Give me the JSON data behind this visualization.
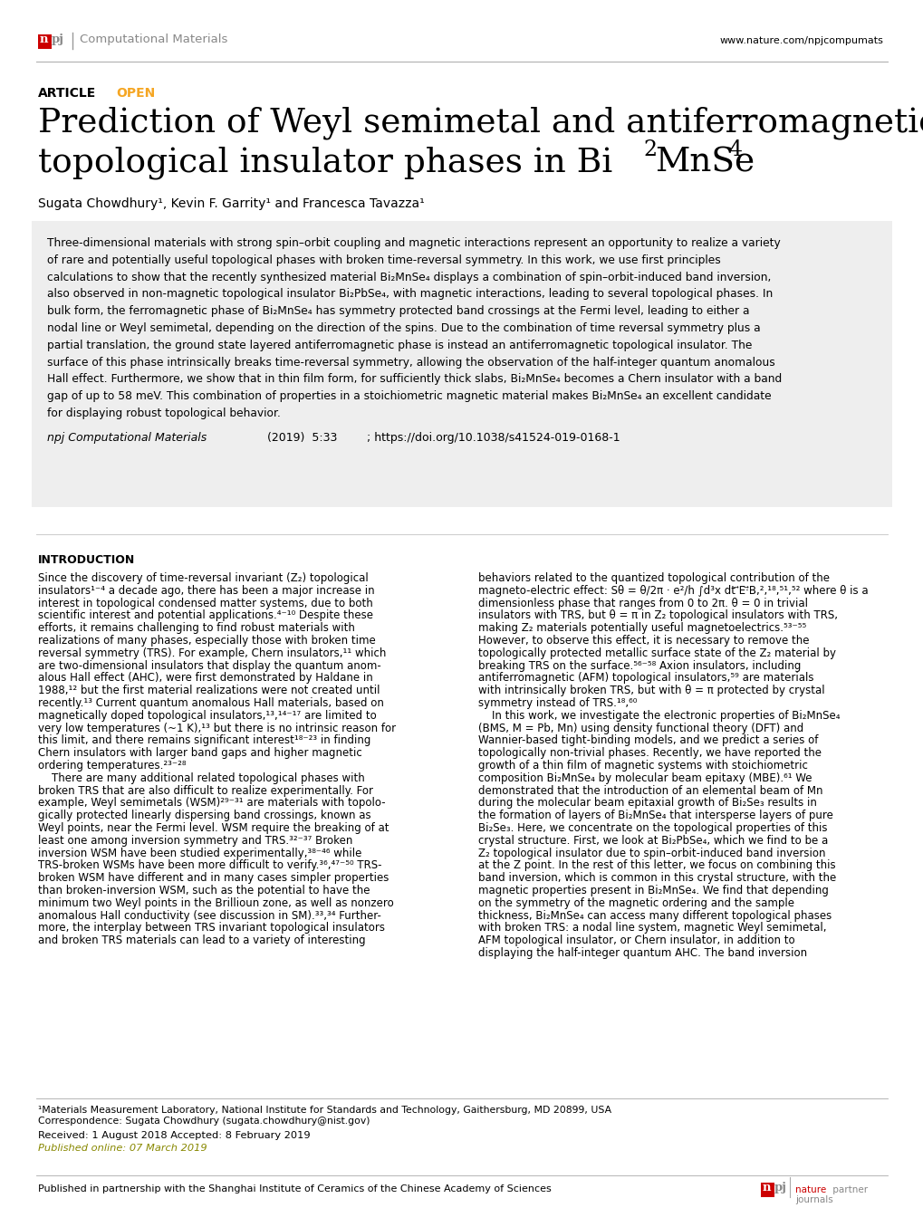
{
  "bg_color": "#ffffff",
  "header_journal": "Computational Materials",
  "header_url": "www.nature.com/npjcompumats",
  "article_label": "ARTICLE",
  "open_label": "OPEN",
  "authors": "Sugata Chowdhury¹, Kevin F. Garrity¹ and Francesca Tavazza¹",
  "journal_ref": "npj Computational Materials",
  "year_vol": "(2019)  5:33",
  "doi": "; https://doi.org/10.1038/s41524-019-0168-1",
  "intro_title": "INTRODUCTION",
  "footnote1": "¹Materials Measurement Laboratory, National Institute for Standards and Technology, Gaithersburg, MD 20899, USA",
  "footnote2": "Correspondence: Sugata Chowdhury (sugata.chowdhury@nist.gov)",
  "received": "Received: 1 August 2018 Accepted: 8 February 2019",
  "published": "Published online: 07 March 2019",
  "footer_text": "Published in partnership with the Shanghai Institute of Ceramics of the Chinese Academy of Sciences",
  "npj_logo_color": "#cc0000",
  "open_color": "#f5a623",
  "text_color": "#000000",
  "gray_text": "#777777",
  "abstract_bg": "#eeeeee",
  "abstract_lines": [
    "Three-dimensional materials with strong spin–orbit coupling and magnetic interactions represent an opportunity to realize a variety",
    "of rare and potentially useful topological phases with broken time-reversal symmetry. In this work, we use first principles",
    "calculations to show that the recently synthesized material Bi₂MnSe₄ displays a combination of spin–orbit-induced band inversion,",
    "also observed in non-magnetic topological insulator Bi₂PbSe₄, with magnetic interactions, leading to several topological phases. In",
    "bulk form, the ferromagnetic phase of Bi₂MnSe₄ has symmetry protected band crossings at the Fermi level, leading to either a",
    "nodal line or Weyl semimetal, depending on the direction of the spins. Due to the combination of time reversal symmetry plus a",
    "partial translation, the ground state layered antiferromagnetic phase is instead an antiferromagnetic topological insulator. The",
    "surface of this phase intrinsically breaks time-reversal symmetry, allowing the observation of the half-integer quantum anomalous",
    "Hall effect. Furthermore, we show that in thin film form, for sufficiently thick slabs, Bi₂MnSe₄ becomes a Chern insulator with a band",
    "gap of up to 58 meV. This combination of properties in a stoichiometric magnetic material makes Bi₂MnSe₄ an excellent candidate",
    "for displaying robust topological behavior."
  ],
  "col1_lines": [
    "Since the discovery of time-reversal invariant (Z₂) topological",
    "insulators¹⁻⁴ a decade ago, there has been a major increase in",
    "interest in topological condensed matter systems, due to both",
    "scientific interest and potential applications.⁴⁻¹⁰ Despite these",
    "efforts, it remains challenging to find robust materials with",
    "realizations of many phases, especially those with broken time",
    "reversal symmetry (TRS). For example, Chern insulators,¹¹ which",
    "are two-dimensional insulators that display the quantum anom-",
    "alous Hall effect (AHC), were first demonstrated by Haldane in",
    "1988,¹² but the first material realizations were not created until",
    "recently.¹³ Current quantum anomalous Hall materials, based on",
    "magnetically doped topological insulators,¹³,¹⁴⁻¹⁷ are limited to",
    "very low temperatures (~1 K),¹³ but there is no intrinsic reason for",
    "this limit, and there remains significant interest¹⁸⁻²³ in finding",
    "Chern insulators with larger band gaps and higher magnetic",
    "ordering temperatures.²³⁻²⁸",
    "    There are many additional related topological phases with",
    "broken TRS that are also difficult to realize experimentally. For",
    "example, Weyl semimetals (WSM)²⁹⁻³¹ are materials with topolo-",
    "gically protected linearly dispersing band crossings, known as",
    "Weyl points, near the Fermi level. WSM require the breaking of at",
    "least one among inversion symmetry and TRS.³²⁻³⁷ Broken",
    "inversion WSM have been studied experimentally,³⁸⁻⁴⁶ while",
    "TRS-broken WSMs have been more difficult to verify.³⁶,⁴⁷⁻⁵⁰ TRS-",
    "broken WSM have different and in many cases simpler properties",
    "than broken-inversion WSM, such as the potential to have the",
    "minimum two Weyl points in the Brillioun zone, as well as nonzero",
    "anomalous Hall conductivity (see discussion in SM).³³,³⁴ Further-",
    "more, the interplay between TRS invariant topological insulators",
    "and broken TRS materials can lead to a variety of interesting"
  ],
  "col2_lines": [
    "behaviors related to the quantized topological contribution of the",
    "magneto-electric effect: Sθ = θ/2π · e²/h ∫d³x dt ⃗E·⃗B,²,¹⁸,⁵¹,⁵² where θ is a",
    "dimensionless phase that ranges from 0 to 2π. θ = 0 in trivial",
    "insulators with TRS, but θ = π in Z₂ topological insulators with TRS,",
    "making Z₂ materials potentially useful magnetoelectrics.⁵³⁻⁵⁵",
    "However, to observe this effect, it is necessary to remove the",
    "topologically protected metallic surface state of the Z₂ material by",
    "breaking TRS on the surface.⁵⁶⁻⁵⁸ Axion insulators, including",
    "antiferromagnetic (AFM) topological insulators,⁵⁹ are materials",
    "with intrinsically broken TRS, but with θ = π protected by crystal",
    "symmetry instead of TRS.¹⁸,⁶⁰",
    "    In this work, we investigate the electronic properties of Bi₂MnSe₄",
    "(BMS, M = Pb, Mn) using density functional theory (DFT) and",
    "Wannier-based tight-binding models, and we predict a series of",
    "topologically non-trivial phases. Recently, we have reported the",
    "growth of a thin film of magnetic systems with stoichiometric",
    "composition Bi₂MnSe₄ by molecular beam epitaxy (MBE).⁶¹ We",
    "demonstrated that the introduction of an elemental beam of Mn",
    "during the molecular beam epitaxial growth of Bi₂Se₃ results in",
    "the formation of layers of Bi₂MnSe₄ that intersperse layers of pure",
    "Bi₂Se₃. Here, we concentrate on the topological properties of this",
    "crystal structure. First, we look at Bi₂PbSe₄, which we find to be a",
    "Z₂ topological insulator due to spin–orbit-induced band inversion",
    "at the Z point. In the rest of this letter, we focus on combining this",
    "band inversion, which is common in this crystal structure, with the",
    "magnetic properties present in Bi₂MnSe₄. We find that depending",
    "on the symmetry of the magnetic ordering and the sample",
    "thickness, Bi₂MnSe₄ can access many different topological phases",
    "with broken TRS: a nodal line system, magnetic Weyl semimetal,",
    "AFM topological insulator, or Chern insulator, in addition to",
    "displaying the half-integer quantum AHC. The band inversion"
  ]
}
